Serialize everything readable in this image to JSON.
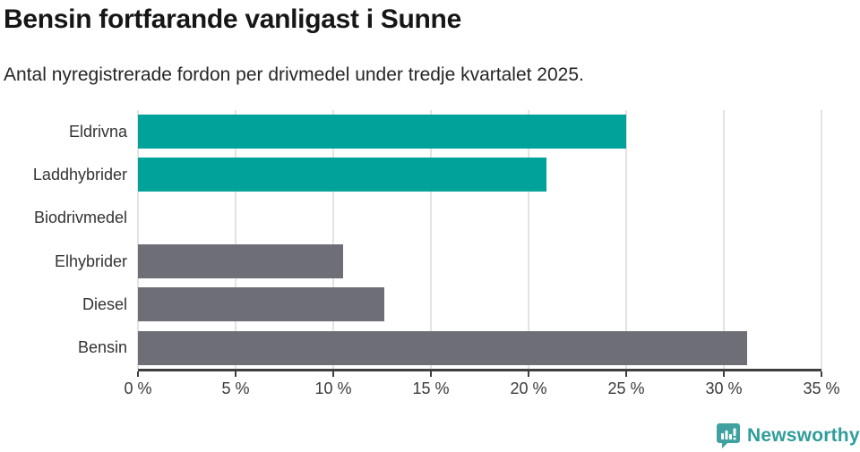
{
  "title": "Bensin fortfarande vanligast i Sunne",
  "subtitle": "Antal nyregistrerade fordon per drivmedel under tredje kvartalet 2025.",
  "chart_data": {
    "type": "bar",
    "orientation": "horizontal",
    "title": "Bensin fortfarande vanligast i Sunne",
    "subtitle": "Antal nyregistrerade fordon per drivmedel under tredje kvartalet 2025.",
    "categories": [
      "Eldrivna",
      "Laddhybrider",
      "Biodrivmedel",
      "Elhybrider",
      "Diesel",
      "Bensin"
    ],
    "values": [
      25.0,
      20.9,
      0,
      10.5,
      12.6,
      31.2
    ],
    "unit": "%",
    "bar_colors": [
      "#00A299",
      "#00A299",
      "#00A299",
      "#6E6E76",
      "#6E6E76",
      "#6E6E76"
    ],
    "xlim": [
      0,
      35
    ],
    "x_ticks": [
      0,
      5,
      10,
      15,
      20,
      25,
      30,
      35
    ],
    "x_tick_labels": [
      "0 %",
      "5 %",
      "10 %",
      "15 %",
      "20 %",
      "25 %",
      "30 %",
      "35 %"
    ],
    "grid": "vertical-only",
    "legend": "none"
  },
  "colors": {
    "teal": "#00A299",
    "gray": "#6E6E76",
    "gridline": "#E3E3E3",
    "axis": "#3F3F3F",
    "logo_icon": "#3FA2A0",
    "logo_text": "#2F9D9B"
  },
  "footer": {
    "brand": "Newsworthy"
  }
}
